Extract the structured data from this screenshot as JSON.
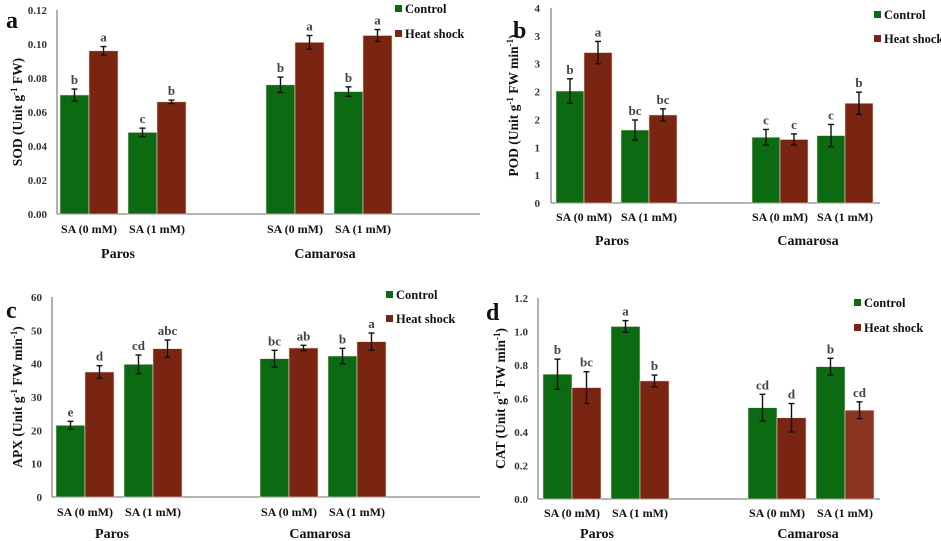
{
  "legend": {
    "control": "Control",
    "heat_shock": "Heat shock"
  },
  "colors": {
    "control": "#0b6a12",
    "heat_shock": "#7a2412",
    "heat_shock_light": "#8a3520",
    "axis": "#888888",
    "errorbar": "#111111"
  },
  "chart_data": [
    {
      "type": "bar",
      "panel_label": "a",
      "title": "",
      "ylabel": "SOD (Unit g-1 FW)",
      "ylabel_parts": [
        "SOD (Unit g",
        "-1",
        " FW)"
      ],
      "ylim": [
        0,
        0.12
      ],
      "yticks": [
        0,
        0.02,
        0.04,
        0.06,
        0.08,
        0.1,
        0.12
      ],
      "ytick_labels": [
        "0.00",
        "0.02",
        "0.04",
        "0.06",
        "0.08",
        "0.10",
        "0.12"
      ],
      "groups": [
        "Paros",
        "Camarosa"
      ],
      "categories": [
        "SA (0 mM)",
        "SA (1 mM)",
        "SA (0 mM)",
        "SA (1 mM)"
      ],
      "legend_position": "top-right",
      "series": [
        {
          "name": "Control",
          "values": [
            0.07,
            0.048,
            0.076,
            0.072
          ],
          "errors": [
            0.0035,
            0.0025,
            0.0045,
            0.0028
          ],
          "letters": [
            "b",
            "c",
            "b",
            "b"
          ]
        },
        {
          "name": "Heat shock",
          "values": [
            0.096,
            0.066,
            0.101,
            0.105
          ],
          "errors": [
            0.0025,
            0.001,
            0.004,
            0.0035
          ],
          "letters": [
            "a",
            "b",
            "a",
            "a"
          ]
        }
      ]
    },
    {
      "type": "bar",
      "panel_label": "b",
      "title": "",
      "ylabel": "POD (Unit g-1 FW min-1)",
      "ylabel_parts": [
        "POD (Unit g",
        "-1",
        " FW min",
        "-1",
        ")"
      ],
      "ylim": [
        0,
        3.5
      ],
      "yticks": [
        0,
        0.5,
        1.0,
        1.5,
        2.0,
        2.5,
        3.0,
        3.5
      ],
      "ytick_labels": [
        "0",
        "1",
        "1",
        "2",
        "2",
        "3",
        "3",
        "4"
      ],
      "groups": [
        "Paros",
        "Camarosa"
      ],
      "categories": [
        "SA (0 mM)",
        "SA (1 mM)",
        "SA (0 mM)",
        "SA (1 mM)"
      ],
      "legend_position": "top-right",
      "series": [
        {
          "name": "Control",
          "values": [
            2.01,
            1.31,
            1.18,
            1.21
          ],
          "errors": [
            0.22,
            0.18,
            0.14,
            0.2
          ],
          "letters": [
            "b",
            "bc",
            "c",
            "c"
          ]
        },
        {
          "name": "Heat shock",
          "values": [
            2.7,
            1.58,
            1.14,
            1.79
          ],
          "errors": [
            0.2,
            0.11,
            0.1,
            0.2
          ],
          "letters": [
            "a",
            "bc",
            "c",
            "b"
          ]
        }
      ]
    },
    {
      "type": "bar",
      "panel_label": "c",
      "title": "",
      "ylabel": "APX (Unit g-1 FW min-1)",
      "ylabel_parts": [
        "APX (Unit g",
        "-1",
        " FW min",
        "-1",
        ")"
      ],
      "ylim": [
        0,
        60
      ],
      "yticks": [
        0,
        10,
        20,
        30,
        40,
        50,
        60
      ],
      "ytick_labels": [
        "0",
        "10",
        "20",
        "30",
        "40",
        "50",
        "60"
      ],
      "groups": [
        "Paros",
        "Camarosa"
      ],
      "categories": [
        "SA (0 mM)",
        "SA (1 mM)",
        "SA (0 mM)",
        "SA (1 mM)"
      ],
      "legend_position": "top-right",
      "series": [
        {
          "name": "Control",
          "values": [
            21.5,
            39.8,
            41.5,
            42.3
          ],
          "errors": [
            1.2,
            2.8,
            2.5,
            2.3
          ],
          "letters": [
            "e",
            "cd",
            "bc",
            "b"
          ]
        },
        {
          "name": "Heat shock",
          "values": [
            37.5,
            44.5,
            44.7,
            46.6
          ],
          "errors": [
            1.9,
            2.6,
            0.8,
            2.6
          ],
          "letters": [
            "d",
            "abc",
            "ab",
            "a"
          ]
        }
      ]
    },
    {
      "type": "bar",
      "panel_label": "d",
      "title": "",
      "ylabel": "CAT (Unit g-1 FW min-1)",
      "ylabel_parts": [
        "CAT (Unit g",
        "-1",
        " FW min",
        "-1",
        ")"
      ],
      "ylim": [
        0,
        1.2
      ],
      "yticks": [
        0,
        0.2,
        0.4,
        0.6,
        0.8,
        1.0,
        1.2
      ],
      "ytick_labels": [
        "0.0",
        "0.2",
        "0.4",
        "0.6",
        "0.8",
        "1.0",
        "1.2"
      ],
      "groups": [
        "Paros",
        "Camarosa"
      ],
      "categories": [
        "SA (0 mM)",
        "SA (1 mM)",
        "SA (0 mM)",
        "SA (1 mM)"
      ],
      "legend_position": "top-right",
      "series": [
        {
          "name": "Control",
          "values": [
            0.745,
            1.03,
            0.545,
            0.79
          ],
          "errors": [
            0.09,
            0.035,
            0.08,
            0.05
          ],
          "letters": [
            "b",
            "a",
            "cd",
            "b"
          ]
        },
        {
          "name": "Heat shock",
          "values": [
            0.665,
            0.705,
            0.485,
            0.53
          ],
          "errors": [
            0.095,
            0.035,
            0.085,
            0.05
          ],
          "letters": [
            "bc",
            "b",
            "d",
            "cd"
          ]
        }
      ]
    }
  ]
}
